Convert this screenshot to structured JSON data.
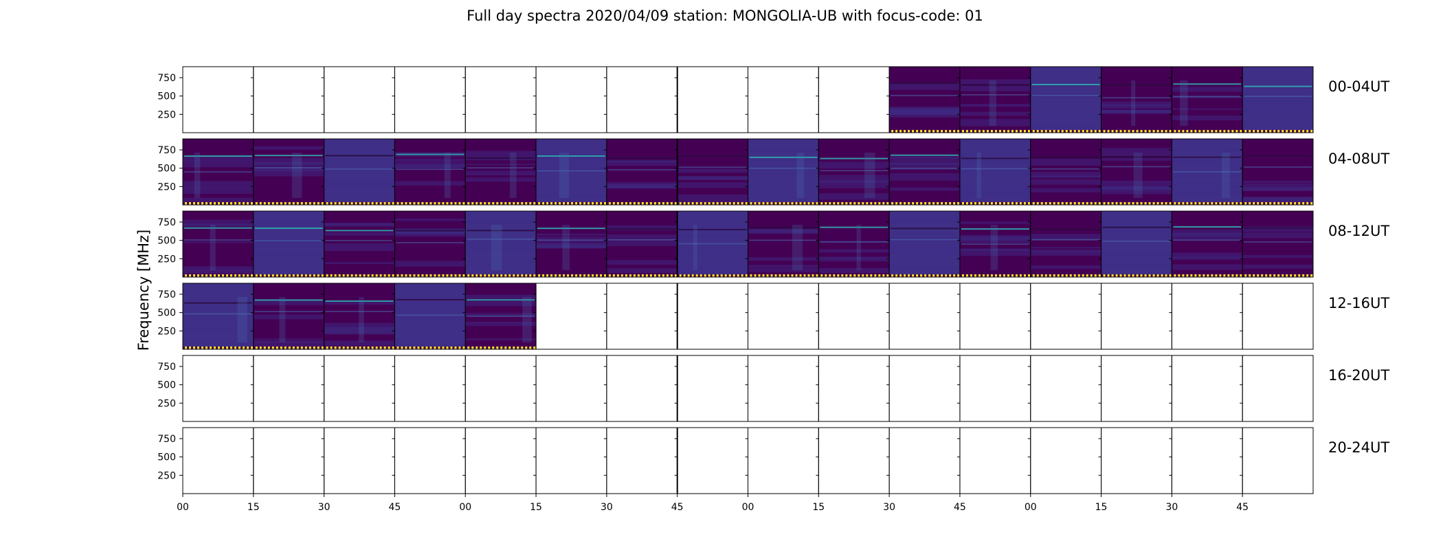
{
  "title": "Full day spectra 2020/04/09 station: MONGOLIA-UB with focus-code: 01",
  "ylabel": "Frequency [MHz]",
  "colors": {
    "background": "#440154",
    "fill_alt": "#3f2f87",
    "stripe_dark": "#2a0a40",
    "stripe_cyan": "#2fb3b0",
    "stripe_blue": "#4d6fb0",
    "marker_yellow": "#fde725",
    "frame": "#000000"
  },
  "chart_data": {
    "type": "heatmap",
    "title": "Full day spectra 2020/04/09 station: MONGOLIA-UB with focus-code: 01",
    "ylabel": "Frequency [MHz]",
    "y_ticks": [
      "750",
      "500",
      "250"
    ],
    "y_tick_values": [
      750,
      500,
      250
    ],
    "ylim": [
      0,
      900
    ],
    "x_ticks": [
      "00",
      "15",
      "30",
      "45",
      "00",
      "15",
      "30",
      "45",
      "00",
      "15",
      "30",
      "45",
      "00",
      "15",
      "30",
      "45"
    ],
    "panels_per_row": 16,
    "panel_minutes": 15,
    "rows": [
      {
        "label": "00-04UT",
        "has_data": [
          false,
          false,
          false,
          false,
          false,
          false,
          false,
          false,
          false,
          false,
          true,
          true,
          true,
          true,
          true,
          true
        ]
      },
      {
        "label": "04-08UT",
        "has_data": [
          true,
          true,
          true,
          true,
          true,
          true,
          true,
          true,
          true,
          true,
          true,
          true,
          true,
          true,
          true,
          true
        ]
      },
      {
        "label": "08-12UT",
        "has_data": [
          true,
          true,
          true,
          true,
          true,
          true,
          true,
          true,
          true,
          true,
          true,
          true,
          true,
          true,
          true,
          true
        ]
      },
      {
        "label": "12-16UT",
        "has_data": [
          true,
          true,
          true,
          true,
          true,
          false,
          false,
          false,
          false,
          false,
          false,
          false,
          false,
          false,
          false,
          false
        ]
      },
      {
        "label": "16-20UT",
        "has_data": [
          false,
          false,
          false,
          false,
          false,
          false,
          false,
          false,
          false,
          false,
          false,
          false,
          false,
          false,
          false,
          false
        ]
      },
      {
        "label": "20-24UT",
        "has_data": [
          false,
          false,
          false,
          false,
          false,
          false,
          false,
          false,
          false,
          false,
          false,
          false,
          false,
          false,
          false,
          false
        ]
      }
    ]
  }
}
